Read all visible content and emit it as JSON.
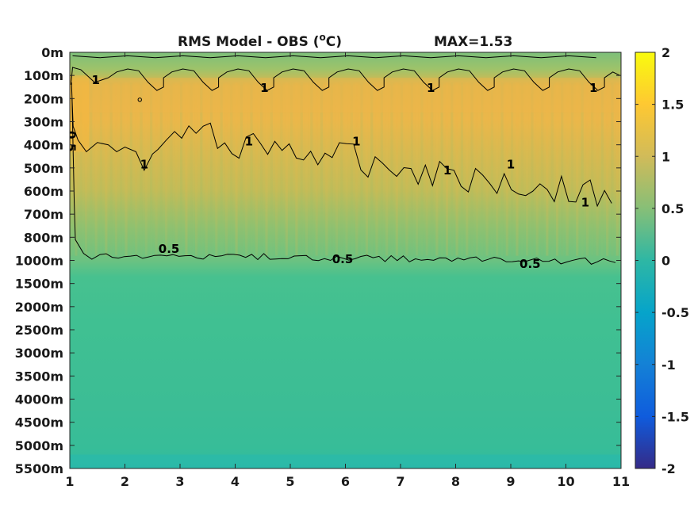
{
  "chart_data": {
    "type": "heatmap",
    "title": "RMS Model - OBS (",
    "title_superscript": "o",
    "title_suffix": "C)",
    "max_text": "MAX=1.53",
    "x_ticks": [
      "1",
      "2",
      "3",
      "4",
      "5",
      "6",
      "7",
      "8",
      "9",
      "10",
      "11"
    ],
    "xlim": [
      1,
      11
    ],
    "y_ticks": [
      "0m",
      "100m",
      "200m",
      "300m",
      "400m",
      "500m",
      "600m",
      "700m",
      "800m",
      "1000m",
      "1500m",
      "2000m",
      "2500m",
      "3000m",
      "3500m",
      "4000m",
      "4500m",
      "5000m",
      "5500m"
    ],
    "colorbar": {
      "range": [
        -2,
        2
      ],
      "ticks": [
        "2",
        "1.5",
        "1",
        "0.5",
        "0",
        "-0.5",
        "-1",
        "-1.5",
        "-2"
      ],
      "tick_values": [
        2,
        1.5,
        1,
        0.5,
        0,
        -0.5,
        -1,
        -1.5,
        -2
      ],
      "colormap": "parula"
    },
    "contour_levels": [
      0.5,
      1
    ],
    "contour_labels": [
      {
        "text": "1",
        "x": 1.47,
        "y": 1.2
      },
      {
        "text": "1",
        "x": 4.53,
        "y": 1.55
      },
      {
        "text": "1",
        "x": 7.55,
        "y": 1.55
      },
      {
        "text": "1",
        "x": 10.5,
        "y": 1.55
      },
      {
        "text": "0.5",
        "x": 1.02,
        "y": 3.85
      },
      {
        "text": "1",
        "x": 2.35,
        "y": 4.85
      },
      {
        "text": "1",
        "x": 4.25,
        "y": 3.85
      },
      {
        "text": "1",
        "x": 6.2,
        "y": 3.85
      },
      {
        "text": "1",
        "x": 7.85,
        "y": 5.1
      },
      {
        "text": "1",
        "x": 9.0,
        "y": 4.85
      },
      {
        "text": "1",
        "x": 10.35,
        "y": 6.5
      },
      {
        "text": "0.5",
        "x": 2.8,
        "y": 8.5
      },
      {
        "text": "0.5",
        "x": 5.95,
        "y": 8.95
      },
      {
        "text": "0.5",
        "x": 9.35,
        "y": 9.15
      }
    ],
    "bands": [
      {
        "from": 0,
        "to": 1,
        "value": 0.75
      },
      {
        "from": 1,
        "to": 3,
        "value": 1.25
      },
      {
        "from": 3,
        "to": 6,
        "value": 1.05
      },
      {
        "from": 6,
        "to": 9,
        "value": 0.75
      },
      {
        "from": 9,
        "to": 10,
        "value": 0.5
      },
      {
        "from": 10,
        "to": 18,
        "value": 0.38
      }
    ]
  }
}
